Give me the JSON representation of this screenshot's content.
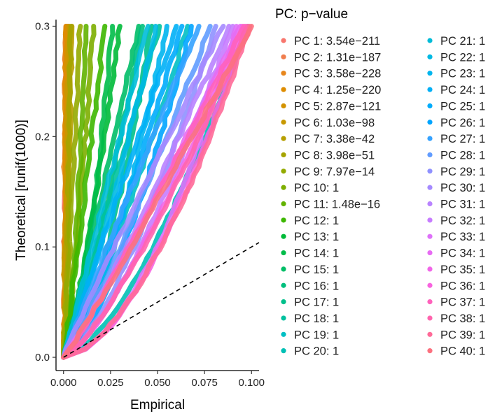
{
  "chart_data": {
    "type": "line",
    "title": "",
    "xlabel": "Empirical",
    "ylabel": "Theoretical [runif(1000)]",
    "xlim": [
      -0.004,
      0.104
    ],
    "ylim": [
      -0.012,
      0.306
    ],
    "x_ticks": [
      0.0,
      0.025,
      0.05,
      0.075,
      0.1
    ],
    "x_tick_labels": [
      "0.000",
      "0.025",
      "0.050",
      "0.075",
      "0.100"
    ],
    "y_ticks": [
      0.0,
      0.1,
      0.2,
      0.3
    ],
    "y_tick_labels": [
      "0.0",
      "0.1",
      "0.2",
      "0.3"
    ],
    "grid": false,
    "legend_position": "right",
    "legend_title": "PC: p−value",
    "reference_line": {
      "style": "dashed",
      "slope": 1,
      "intercept": 0
    },
    "series": [
      {
        "name": "PC 1: 3.54e−211",
        "color": "#F8766D",
        "x_at_max": 0.0015
      },
      {
        "name": "PC 2: 1.31e−187",
        "color": "#F07D4D",
        "x_at_max": 0.0018
      },
      {
        "name": "PC 3: 3.58e−228",
        "color": "#E7861B",
        "x_at_max": 0.0012
      },
      {
        "name": "PC 4: 1.25e−220",
        "color": "#DE8C00",
        "x_at_max": 0.0014
      },
      {
        "name": "PC 5: 2.87e−121",
        "color": "#D39200",
        "x_at_max": 0.0025
      },
      {
        "name": "PC 6: 1.03e−98",
        "color": "#C79800",
        "x_at_max": 0.003
      },
      {
        "name": "PC 7: 3.38e−42",
        "color": "#B79F00",
        "x_at_max": 0.0045
      },
      {
        "name": "PC 8: 3.98e−51",
        "color": "#A5A300",
        "x_at_max": 0.004
      },
      {
        "name": "PC 9: 7.97e−14",
        "color": "#93AA00",
        "x_at_max": 0.009
      },
      {
        "name": "PC 10: 1",
        "color": "#7DAE00",
        "x_at_max": 0.016
      },
      {
        "name": "PC 11: 1.48e−16",
        "color": "#62B200",
        "x_at_max": 0.012
      },
      {
        "name": "PC 12: 1",
        "color": "#3DB700",
        "x_at_max": 0.022
      },
      {
        "name": "PC 13: 1",
        "color": "#00BA38",
        "x_at_max": 0.03
      },
      {
        "name": "PC 14: 1",
        "color": "#00BC49",
        "x_at_max": 0.026
      },
      {
        "name": "PC 15: 1",
        "color": "#00BE67",
        "x_at_max": 0.04
      },
      {
        "name": "PC 16: 1",
        "color": "#00BF7D",
        "x_at_max": 0.042
      },
      {
        "name": "PC 17: 1",
        "color": "#00C08B",
        "x_at_max": 0.047
      },
      {
        "name": "PC 18: 1",
        "color": "#00C19F",
        "x_at_max": 0.051
      },
      {
        "name": "PC 19: 1",
        "color": "#00BFC4",
        "x_at_max": 0.066
      },
      {
        "name": "PC 20: 1",
        "color": "#00C0B5",
        "x_at_max": 0.098
      },
      {
        "name": "PC 21: 1",
        "color": "#00BCD8",
        "x_at_max": 0.045
      },
      {
        "name": "PC 22: 1",
        "color": "#00B9E3",
        "x_at_max": 0.049
      },
      {
        "name": "PC 23: 1",
        "color": "#00B5EE",
        "x_at_max": 0.055
      },
      {
        "name": "PC 24: 1",
        "color": "#00B0F6",
        "x_at_max": 0.06
      },
      {
        "name": "PC 25: 1",
        "color": "#00ACFC",
        "x_at_max": 0.063
      },
      {
        "name": "PC 26: 1",
        "color": "#00A5FF",
        "x_at_max": 0.068
      },
      {
        "name": "PC 27: 1",
        "color": "#35A2FF",
        "x_at_max": 0.072
      },
      {
        "name": "PC 28: 1",
        "color": "#619CFF",
        "x_at_max": 0.078
      },
      {
        "name": "PC 29: 1",
        "color": "#8F91FF",
        "x_at_max": 0.081
      },
      {
        "name": "PC 30: 1",
        "color": "#A58AFF",
        "x_at_max": 0.085
      },
      {
        "name": "PC 31: 1",
        "color": "#B983FF",
        "x_at_max": 0.088
      },
      {
        "name": "PC 32: 1",
        "color": "#C77CFF",
        "x_at_max": 0.09
      },
      {
        "name": "PC 33: 1",
        "color": "#DE71F9",
        "x_at_max": 0.092
      },
      {
        "name": "PC 34: 1",
        "color": "#E76BF3",
        "x_at_max": 0.094
      },
      {
        "name": "PC 35: 1",
        "color": "#F166E8",
        "x_at_max": 0.095
      },
      {
        "name": "PC 36: 1",
        "color": "#F863DF",
        "x_at_max": 0.097
      },
      {
        "name": "PC 37: 1",
        "color": "#FF62BC",
        "x_at_max": 0.096
      },
      {
        "name": "PC 38: 1",
        "color": "#FF65AE",
        "x_at_max": 0.098
      },
      {
        "name": "PC 39: 1",
        "color": "#FF6A98",
        "x_at_max": 0.099
      },
      {
        "name": "PC 40: 1",
        "color": "#FC717F",
        "x_at_max": 0.1
      }
    ]
  }
}
